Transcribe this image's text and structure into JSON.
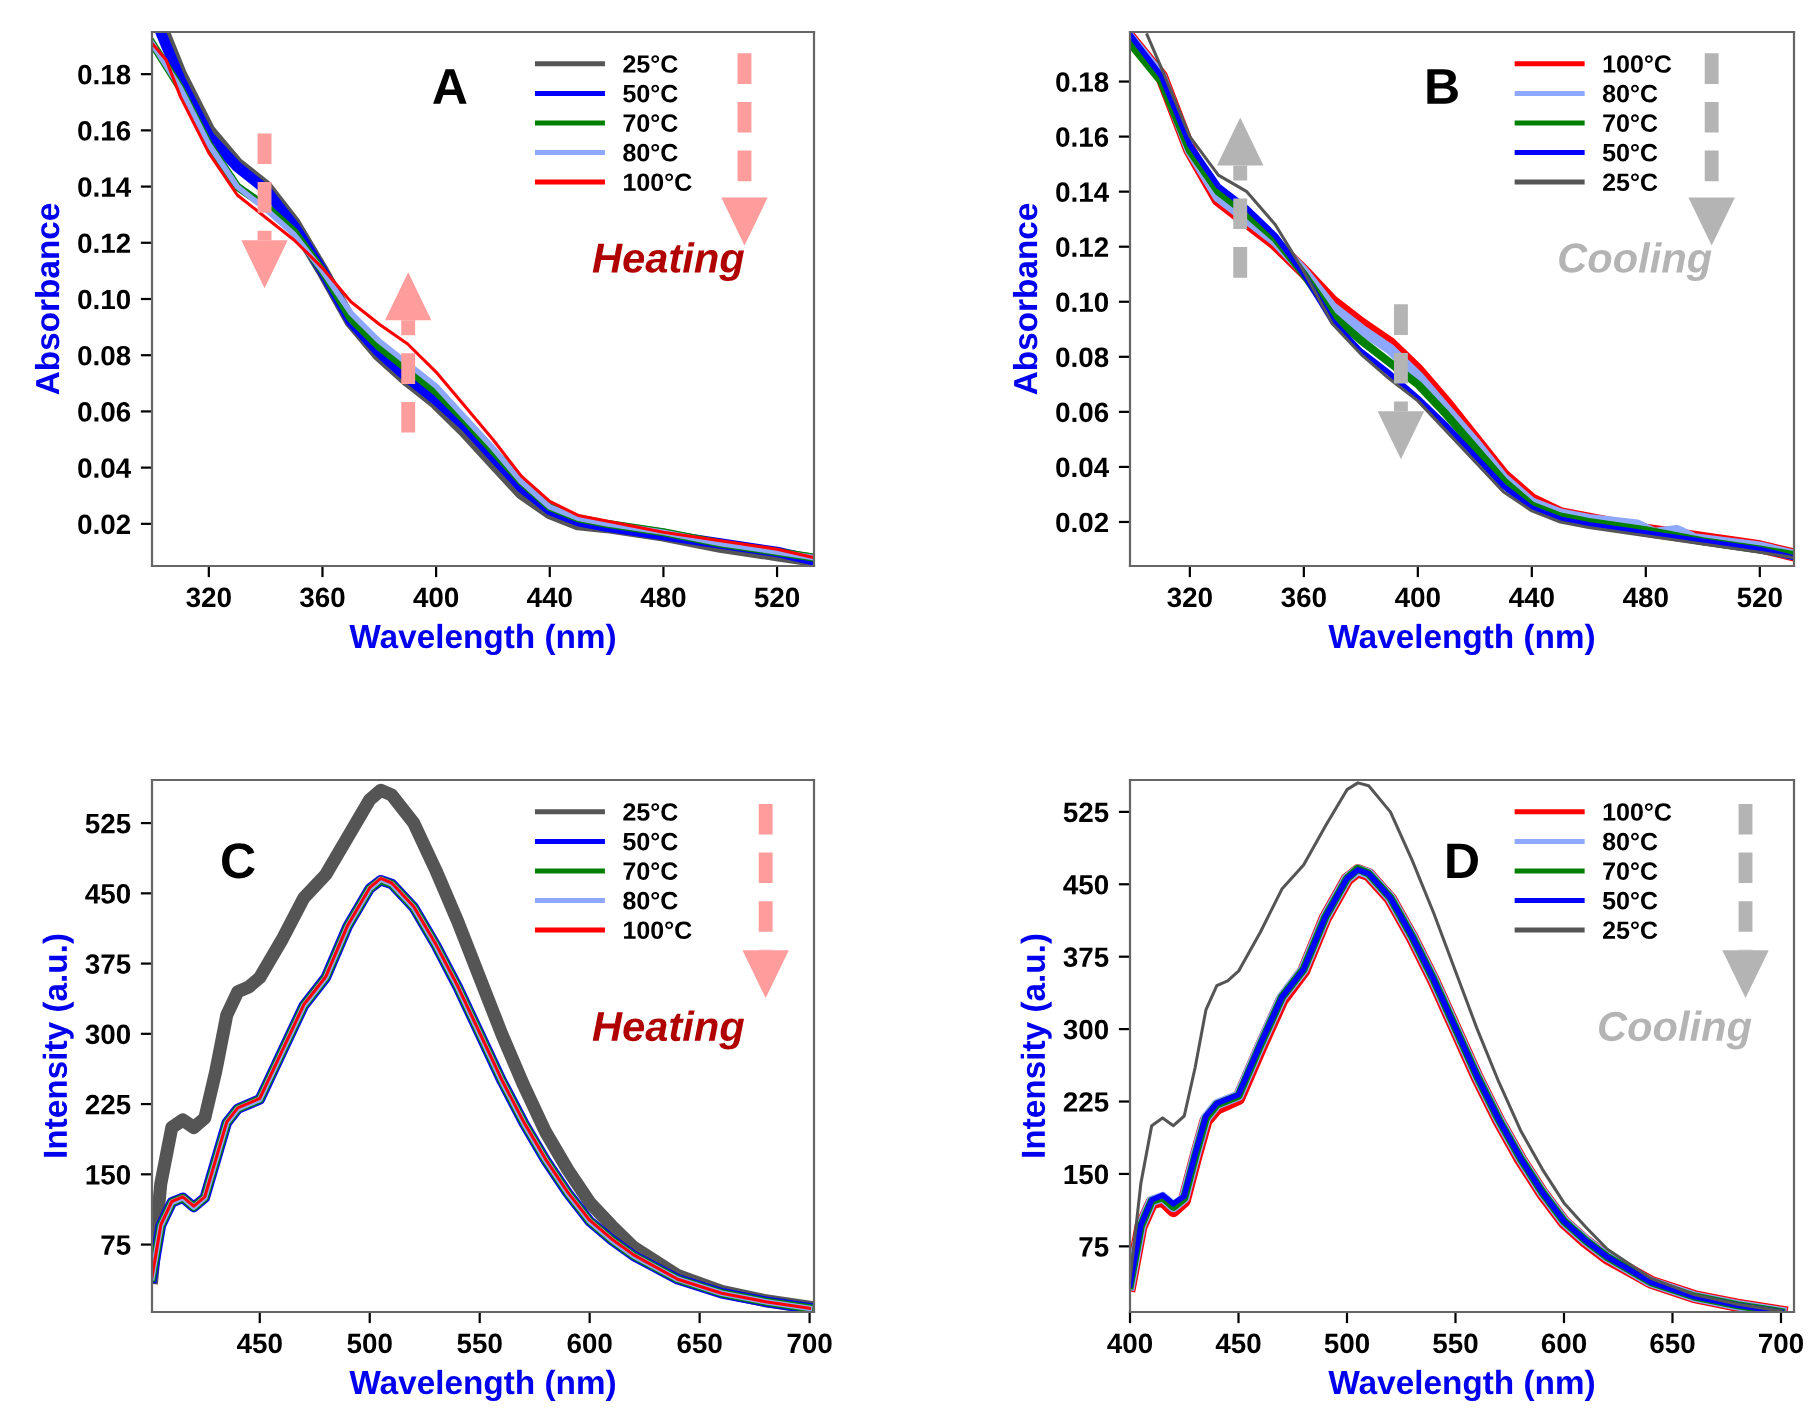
{
  "chart_data": [
    {
      "type": "line",
      "title": "A",
      "xlabel": "Wavelength (nm)",
      "ylabel": "Absorbance",
      "annotations": [
        "Heating"
      ],
      "xlim": [
        300,
        533
      ],
      "ylim": [
        0.005,
        0.195
      ],
      "xticks": [
        320,
        360,
        400,
        440,
        480,
        520
      ],
      "yticks": [
        0.02,
        0.04,
        0.06,
        0.08,
        {
          "value": 0.1,
          "label": "0.10"
        },
        0.12,
        0.14,
        0.16,
        0.18
      ],
      "grid": false,
      "legend": "top right",
      "marker": "none",
      "line_style": "solid",
      "series": [
        {
          "name": "25°C",
          "color": "#555555",
          "x": [
            304,
            310,
            320,
            330,
            340,
            350,
            360,
            370,
            380,
            390,
            400,
            410,
            420,
            430,
            440,
            450,
            460,
            480,
            500,
            520,
            533
          ],
          "values": [
            0.195,
            0.18,
            0.16,
            0.148,
            0.14,
            0.127,
            0.11,
            0.092,
            0.08,
            0.071,
            0.063,
            0.053,
            0.042,
            0.031,
            0.024,
            0.02,
            0.019,
            0.016,
            0.012,
            0.009,
            0.007
          ]
        },
        {
          "name": "50°C",
          "color": "#0000ff",
          "x": [
            303,
            310,
            320,
            330,
            340,
            350,
            360,
            370,
            380,
            390,
            400,
            410,
            420,
            430,
            440,
            450,
            460,
            480,
            500,
            520,
            533
          ],
          "values": [
            0.195,
            0.178,
            0.158,
            0.147,
            0.139,
            0.126,
            0.11,
            0.092,
            0.081,
            0.072,
            0.064,
            0.055,
            0.044,
            0.033,
            0.025,
            0.021,
            0.019,
            0.016,
            0.013,
            0.01,
            0.007
          ]
        },
        {
          "name": "70°C",
          "color": "#008000",
          "x": [
            300,
            310,
            320,
            330,
            340,
            350,
            360,
            370,
            380,
            390,
            400,
            410,
            420,
            430,
            440,
            450,
            460,
            480,
            500,
            520,
            533
          ],
          "values": [
            0.191,
            0.175,
            0.155,
            0.14,
            0.133,
            0.124,
            0.11,
            0.093,
            0.083,
            0.075,
            0.067,
            0.057,
            0.046,
            0.035,
            0.026,
            0.022,
            0.02,
            0.017,
            0.013,
            0.01,
            0.008
          ]
        },
        {
          "name": "80°C",
          "color": "#8fa8ff",
          "x": [
            300,
            310,
            320,
            330,
            340,
            350,
            360,
            370,
            380,
            390,
            400,
            410,
            420,
            430,
            440,
            450,
            460,
            480,
            500,
            520,
            533
          ],
          "values": [
            0.191,
            0.175,
            0.155,
            0.14,
            0.132,
            0.123,
            0.11,
            0.095,
            0.085,
            0.077,
            0.069,
            0.058,
            0.047,
            0.035,
            0.026,
            0.022,
            0.02,
            0.017,
            0.013,
            0.01,
            0.008
          ]
        },
        {
          "name": "100°C",
          "color": "#ff0000",
          "x": [
            300,
            305,
            310,
            320,
            330,
            340,
            350,
            360,
            370,
            380,
            390,
            400,
            410,
            420,
            430,
            440,
            450,
            460,
            480,
            500,
            520,
            533
          ],
          "values": [
            0.191,
            0.185,
            0.172,
            0.152,
            0.137,
            0.129,
            0.121,
            0.111,
            0.099,
            0.091,
            0.084,
            0.074,
            0.062,
            0.05,
            0.037,
            0.028,
            0.023,
            0.021,
            0.017,
            0.014,
            0.011,
            0.008
          ]
        }
      ]
    },
    {
      "type": "line",
      "title": "B",
      "xlabel": "Wavelength (nm)",
      "ylabel": "Absorbance",
      "annotations": [
        "Cooling"
      ],
      "xlim": [
        299,
        532
      ],
      "ylim": [
        0.004,
        0.198
      ],
      "xticks": [
        320,
        360,
        400,
        440,
        480,
        520
      ],
      "yticks": [
        0.02,
        0.04,
        0.06,
        0.08,
        {
          "value": 0.1,
          "label": "0.10"
        },
        0.12,
        0.14,
        0.16,
        0.18
      ],
      "grid": false,
      "legend": "top right",
      "marker": "none",
      "line_style": "solid",
      "series": [
        {
          "name": "100°C",
          "color": "#ff0000",
          "x": [
            299,
            310,
            320,
            330,
            340,
            350,
            360,
            370,
            380,
            390,
            400,
            410,
            420,
            430,
            440,
            450,
            460,
            480,
            500,
            520,
            532
          ],
          "values": [
            0.196,
            0.182,
            0.155,
            0.137,
            0.129,
            0.121,
            0.111,
            0.1,
            0.092,
            0.085,
            0.075,
            0.063,
            0.05,
            0.037,
            0.028,
            0.023,
            0.021,
            0.017,
            0.014,
            0.011,
            0.008
          ]
        },
        {
          "name": "80°C",
          "color": "#8fa8ff",
          "x": [
            299,
            310,
            320,
            330,
            340,
            350,
            360,
            370,
            380,
            390,
            400,
            410,
            420,
            430,
            440,
            450,
            460,
            477,
            483,
            491,
            497,
            520,
            532
          ],
          "values": [
            0.196,
            0.182,
            0.155,
            0.138,
            0.13,
            0.122,
            0.111,
            0.098,
            0.09,
            0.083,
            0.073,
            0.061,
            0.049,
            0.036,
            0.027,
            0.023,
            0.021,
            0.019,
            0.016,
            0.017,
            0.014,
            0.011,
            0.008
          ]
        },
        {
          "name": "70°C",
          "color": "#008000",
          "x": [
            299,
            310,
            320,
            330,
            340,
            350,
            360,
            370,
            380,
            390,
            400,
            410,
            420,
            430,
            440,
            450,
            460,
            480,
            500,
            520,
            532
          ],
          "values": [
            0.194,
            0.18,
            0.155,
            0.14,
            0.132,
            0.123,
            0.11,
            0.095,
            0.086,
            0.078,
            0.07,
            0.059,
            0.047,
            0.035,
            0.026,
            0.022,
            0.02,
            0.017,
            0.013,
            0.01,
            0.008
          ]
        },
        {
          "name": "50°C",
          "color": "#0000ff",
          "x": [
            299,
            310,
            320,
            330,
            340,
            350,
            360,
            370,
            380,
            390,
            400,
            410,
            420,
            430,
            440,
            450,
            460,
            480,
            500,
            520,
            532
          ],
          "values": [
            0.197,
            0.182,
            0.157,
            0.142,
            0.134,
            0.124,
            0.11,
            0.093,
            0.082,
            0.074,
            0.065,
            0.055,
            0.044,
            0.033,
            0.025,
            0.021,
            0.019,
            0.016,
            0.013,
            0.01,
            0.007
          ]
        },
        {
          "name": "25°C",
          "color": "#555555",
          "x": [
            305,
            310,
            320,
            330,
            340,
            350,
            360,
            370,
            380,
            390,
            400,
            410,
            420,
            430,
            440,
            450,
            460,
            480,
            500,
            520,
            532
          ],
          "values": [
            0.197,
            0.185,
            0.16,
            0.146,
            0.14,
            0.128,
            0.111,
            0.092,
            0.081,
            0.072,
            0.064,
            0.053,
            0.042,
            0.031,
            0.024,
            0.02,
            0.018,
            0.015,
            0.012,
            0.009,
            0.007
          ]
        }
      ]
    },
    {
      "type": "line",
      "title": "C",
      "xlabel": "Wavelength (nm)",
      "ylabel": "Intensity (a.u.)",
      "annotations": [
        "Heating"
      ],
      "xlim": [
        401,
        702
      ],
      "ylim": [
        3,
        571
      ],
      "xticks": [
        450,
        500,
        550,
        600,
        650,
        700
      ],
      "yticks": [
        75,
        150,
        225,
        300,
        375,
        450,
        525
      ],
      "grid": false,
      "legend": "top right",
      "marker": "none",
      "line_style": "solid",
      "series": [
        {
          "name": "25°C",
          "color": "#555555",
          "x": [
            401,
            405,
            410,
            415,
            420,
            425,
            430,
            435,
            440,
            445,
            450,
            460,
            470,
            480,
            490,
            500,
            505,
            510,
            520,
            530,
            540,
            550,
            560,
            570,
            580,
            590,
            600,
            610,
            620,
            640,
            660,
            680,
            700
          ],
          "values": [
            40,
            140,
            200,
            208,
            200,
            210,
            260,
            320,
            345,
            350,
            360,
            400,
            445,
            470,
            510,
            550,
            560,
            555,
            525,
            475,
            420,
            360,
            300,
            245,
            195,
            155,
            120,
            95,
            72,
            42,
            25,
            15,
            8
          ]
        },
        {
          "name": "50°C",
          "color": "#0000ff",
          "x": [
            401,
            405,
            410,
            415,
            420,
            425,
            430,
            435,
            440,
            450,
            460,
            470,
            480,
            490,
            500,
            505,
            510,
            520,
            530,
            540,
            550,
            560,
            570,
            580,
            590,
            600,
            610,
            620,
            640,
            660,
            680,
            700
          ],
          "values": [
            40,
            95,
            120,
            125,
            115,
            125,
            165,
            205,
            220,
            230,
            280,
            330,
            360,
            415,
            455,
            464,
            460,
            435,
            395,
            350,
            300,
            250,
            205,
            165,
            130,
            100,
            80,
            63,
            38,
            23,
            14,
            7
          ]
        },
        {
          "name": "70°C",
          "color": "#008000",
          "x": [
            401,
            405,
            410,
            415,
            420,
            425,
            430,
            435,
            440,
            450,
            460,
            470,
            480,
            490,
            500,
            505,
            510,
            520,
            530,
            540,
            550,
            560,
            570,
            580,
            590,
            600,
            610,
            620,
            640,
            660,
            680,
            700
          ],
          "values": [
            40,
            95,
            120,
            125,
            115,
            125,
            165,
            205,
            220,
            230,
            280,
            330,
            360,
            415,
            455,
            464,
            460,
            435,
            395,
            350,
            300,
            250,
            205,
            165,
            130,
            100,
            80,
            63,
            38,
            23,
            14,
            7
          ]
        },
        {
          "name": "80°C",
          "color": "#8fa8ff",
          "x": [
            401,
            405,
            410,
            415,
            420,
            425,
            430,
            435,
            440,
            450,
            460,
            470,
            480,
            490,
            500,
            505,
            510,
            520,
            530,
            540,
            550,
            560,
            570,
            580,
            590,
            600,
            610,
            620,
            640,
            660,
            680,
            700
          ],
          "values": [
            40,
            95,
            120,
            125,
            115,
            125,
            165,
            205,
            220,
            230,
            280,
            330,
            360,
            415,
            455,
            465,
            460,
            435,
            395,
            350,
            300,
            250,
            205,
            165,
            130,
            100,
            80,
            63,
            38,
            23,
            14,
            7
          ]
        },
        {
          "name": "100°C",
          "color": "#ff0000",
          "x": [
            401,
            405,
            410,
            415,
            420,
            425,
            430,
            435,
            440,
            450,
            460,
            470,
            480,
            490,
            500,
            505,
            510,
            520,
            530,
            540,
            550,
            560,
            570,
            580,
            590,
            600,
            610,
            620,
            640,
            660,
            680,
            700
          ],
          "values": [
            40,
            96,
            121,
            126,
            116,
            126,
            166,
            206,
            221,
            231,
            281,
            331,
            361,
            416,
            456,
            466,
            461,
            436,
            396,
            351,
            301,
            251,
            206,
            166,
            131,
            101,
            81,
            64,
            38,
            23,
            14,
            7
          ]
        }
      ]
    },
    {
      "type": "line",
      "title": "D",
      "xlabel": "Wavelength (nm)",
      "ylabel": "Intensity (a.u.)",
      "annotations": [
        "Cooling"
      ],
      "xlim": [
        400,
        706
      ],
      "ylim": [
        7,
        558
      ],
      "xticks": [
        400,
        450,
        500,
        550,
        600,
        650,
        700
      ],
      "yticks": [
        75,
        150,
        225,
        300,
        375,
        450,
        525
      ],
      "grid": false,
      "legend": "top right",
      "marker": "none",
      "line_style": "solid",
      "series": [
        {
          "name": "100°C",
          "color": "#ff0000",
          "x": [
            400,
            405,
            410,
            415,
            420,
            425,
            430,
            435,
            440,
            450,
            460,
            470,
            480,
            490,
            500,
            505,
            510,
            520,
            530,
            540,
            550,
            560,
            570,
            580,
            590,
            600,
            610,
            620,
            640,
            660,
            680,
            700
          ],
          "values": [
            35,
            95,
            120,
            123,
            112,
            122,
            165,
            205,
            218,
            228,
            280,
            330,
            360,
            415,
            455,
            464,
            460,
            435,
            395,
            350,
            300,
            250,
            205,
            165,
            130,
            100,
            80,
            63,
            38,
            23,
            14,
            7
          ]
        },
        {
          "name": "80°C",
          "color": "#8fa8ff",
          "x": [
            400,
            405,
            410,
            415,
            420,
            425,
            430,
            435,
            440,
            450,
            460,
            470,
            480,
            490,
            500,
            505,
            510,
            520,
            530,
            540,
            550,
            560,
            570,
            580,
            590,
            600,
            610,
            620,
            640,
            660,
            680,
            700
          ],
          "values": [
            35,
            96,
            122,
            126,
            116,
            125,
            168,
            208,
            222,
            231,
            283,
            333,
            362,
            416,
            456,
            465,
            461,
            436,
            396,
            351,
            301,
            251,
            206,
            166,
            131,
            101,
            81,
            64,
            38,
            23,
            14,
            7
          ]
        },
        {
          "name": "70°C",
          "color": "#008000",
          "x": [
            400,
            405,
            410,
            415,
            420,
            425,
            430,
            435,
            440,
            450,
            460,
            470,
            480,
            490,
            500,
            505,
            510,
            520,
            530,
            540,
            550,
            560,
            570,
            580,
            590,
            600,
            610,
            620,
            640,
            660,
            680,
            700
          ],
          "values": [
            35,
            96,
            122,
            126,
            116,
            125,
            168,
            208,
            222,
            231,
            283,
            333,
            362,
            416,
            456,
            466,
            461,
            436,
            396,
            351,
            301,
            251,
            206,
            166,
            131,
            101,
            81,
            64,
            38,
            23,
            14,
            7
          ]
        },
        {
          "name": "50°C",
          "color": "#0000ff",
          "x": [
            400,
            405,
            410,
            415,
            420,
            425,
            430,
            435,
            440,
            450,
            460,
            470,
            480,
            490,
            500,
            505,
            510,
            520,
            530,
            540,
            550,
            560,
            570,
            580,
            590,
            600,
            610,
            620,
            640,
            660,
            680,
            700
          ],
          "values": [
            35,
            97,
            123,
            128,
            119,
            127,
            170,
            210,
            223,
            232,
            284,
            333,
            362,
            416,
            456,
            465,
            461,
            436,
            396,
            351,
            301,
            251,
            206,
            166,
            131,
            101,
            81,
            64,
            38,
            23,
            14,
            7
          ]
        },
        {
          "name": "25°C",
          "color": "#555555",
          "x": [
            400,
            405,
            410,
            415,
            420,
            425,
            430,
            435,
            440,
            445,
            450,
            460,
            470,
            480,
            490,
            500,
            505,
            510,
            520,
            530,
            540,
            550,
            560,
            570,
            580,
            590,
            600,
            610,
            620,
            640,
            660,
            680,
            700
          ],
          "values": [
            40,
            140,
            200,
            208,
            200,
            210,
            260,
            320,
            345,
            350,
            360,
            400,
            445,
            470,
            510,
            548,
            555,
            552,
            525,
            475,
            420,
            360,
            300,
            245,
            195,
            155,
            120,
            95,
            72,
            42,
            25,
            15,
            8
          ]
        }
      ]
    }
  ]
}
